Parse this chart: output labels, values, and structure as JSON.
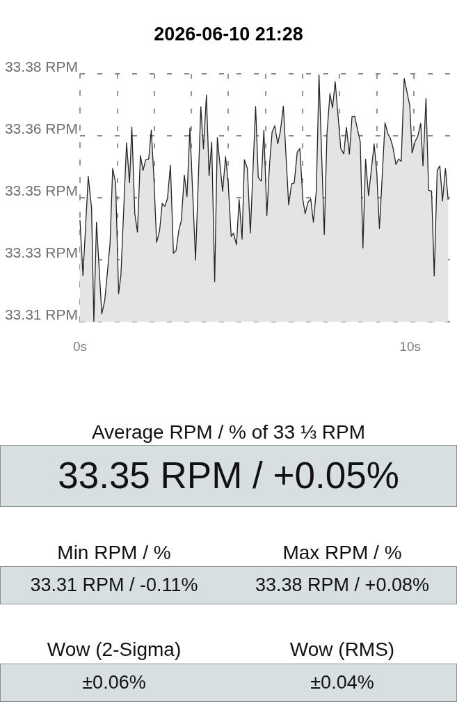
{
  "chart_data": [
    {
      "type": "area",
      "title": "2026-06-10 21:28",
      "color": "#e4e4e4",
      "x": [
        0,
        0.09,
        0.25,
        0.35,
        0.42,
        0.5,
        0.66,
        0.75,
        0.91,
        0.99,
        1.08,
        1.17,
        1.24,
        1.41,
        1.5,
        1.57,
        1.66,
        1.74,
        1.83,
        1.91,
        1.99,
        2.08,
        2.16,
        2.24,
        2.32,
        2.41,
        2.49,
        2.57,
        2.65,
        2.74,
        2.83,
        2.91,
        2.99,
        3.07,
        3.16,
        3.24,
        3.33,
        3.5,
        3.66,
        3.74,
        3.83,
        3.91,
        3.99,
        4.08,
        4.16,
        4.32,
        4.41,
        4.49,
        4.58,
        4.65,
        4.74,
        4.82,
        4.91,
        4.98,
        5.07,
        5.16,
        5.32,
        5.4,
        5.49,
        5.57,
        5.66,
        5.74,
        5.82,
        5.9,
        5.99,
        6.07,
        6.16,
        6.32,
        6.41,
        6.49,
        6.58,
        6.66,
        6.75,
        6.82,
        6.91,
        6.99,
        7.07,
        7.16,
        7.24,
        7.4,
        7.48,
        7.57,
        7.65,
        7.73,
        7.9,
        7.99,
        8.07,
        8.16,
        8.24,
        8.32,
        8.49,
        8.57,
        8.65,
        8.74,
        8.91,
        8.99,
        9.07,
        9.24,
        9.32,
        9.4,
        9.48,
        9.57,
        9.65,
        9.73,
        9.82,
        9.99,
        10.06,
        10.15,
        10.23,
        10.32,
        10.39,
        10.48,
        10.56,
        10.65,
        10.73,
        10.82,
        10.9,
        10.98,
        11.07,
        11.15
      ],
      "values": [
        33.3386,
        33.323,
        33.351,
        33.3422,
        33.31,
        33.3381,
        33.3122,
        33.316,
        33.332,
        33.3533,
        33.3491,
        33.3179,
        33.3232,
        33.3605,
        33.3492,
        33.365,
        33.3405,
        33.3353,
        33.3569,
        33.3527,
        33.3557,
        33.3559,
        33.3641,
        33.3504,
        33.3324,
        33.3356,
        33.3434,
        33.3426,
        33.3448,
        33.3542,
        33.3293,
        33.3301,
        33.3356,
        33.3386,
        33.3514,
        33.3453,
        33.3647,
        33.3274,
        33.3707,
        33.3588,
        33.374,
        33.3512,
        33.3607,
        33.3213,
        33.362,
        33.3468,
        33.3566,
        33.3491,
        33.3341,
        33.335,
        33.3317,
        33.3445,
        33.3333,
        33.3557,
        33.3533,
        33.335,
        33.3708,
        33.3507,
        33.3497,
        33.364,
        33.34,
        33.3543,
        33.3636,
        33.3653,
        33.3602,
        33.3638,
        33.3709,
        33.343,
        33.3489,
        33.3492,
        33.3579,
        33.3589,
        33.3446,
        33.3405,
        33.3438,
        33.3446,
        33.3381,
        33.3472,
        33.3797,
        33.3346,
        33.3628,
        33.3744,
        33.3704,
        33.3778,
        33.3589,
        33.3574,
        33.3649,
        33.3573,
        33.3679,
        33.368,
        33.3607,
        33.3308,
        33.3559,
        33.3456,
        33.3602,
        33.352,
        33.3363,
        33.3662,
        33.3632,
        33.3618,
        33.3592,
        33.3544,
        33.3559,
        33.3553,
        33.3787,
        33.371,
        33.3576,
        33.3609,
        33.3623,
        33.366,
        33.354,
        33.373,
        33.3471,
        33.3469,
        33.3229,
        33.3527,
        33.354,
        33.3441,
        33.3533,
        33.3445
      ],
      "xlim": [
        0,
        11.23
      ],
      "xticks": [
        {
          "value": 0,
          "label": "0s"
        },
        {
          "value": 1.123,
          "label": null
        },
        {
          "value": 2.246,
          "label": null
        },
        {
          "value": 3.369,
          "label": null
        },
        {
          "value": 4.492,
          "label": null
        },
        {
          "value": 5.615,
          "label": null
        },
        {
          "value": 6.738,
          "label": null
        },
        {
          "value": 7.861,
          "label": null
        },
        {
          "value": 8.984,
          "label": null
        },
        {
          "value": 10,
          "label": "10s"
        },
        {
          "value": 10.107,
          "label": null
        }
      ],
      "ylim": [
        33.31,
        33.38
      ],
      "yticks": [
        {
          "value": 33.31,
          "label": "33.31 RPM"
        },
        {
          "value": 33.3275,
          "label": "33.33 RPM"
        },
        {
          "value": 33.345,
          "label": "33.35 RPM"
        },
        {
          "value": 33.3625,
          "label": "33.36 RPM"
        },
        {
          "value": 33.38,
          "label": "33.38 RPM"
        }
      ],
      "grid": true
    },
    {
      "type": "other",
      "categories": [
        "Average RPM / % of 33 ⅓ RPM",
        "Min RPM / %",
        "Max RPM / %",
        "Wow (2-Sigma)",
        "Wow (RMS)"
      ],
      "value_labels": [
        "33.35 RPM / +0.05%",
        "33.31 RPM / -0.11%",
        "33.38 RPM / +0.08%",
        "±0.06%",
        "±0.04%"
      ]
    }
  ]
}
